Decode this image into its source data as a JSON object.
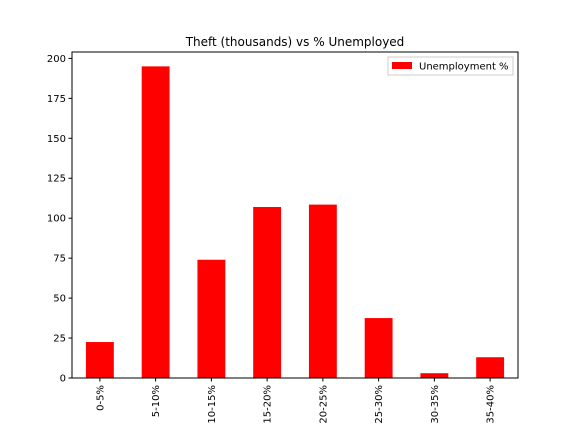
{
  "chart_data": {
    "type": "bar",
    "title": "Theft (thousands) vs % Unemployed",
    "xlabel": "",
    "ylabel": "",
    "categories": [
      "0-5%",
      "5-10%",
      "10-15%",
      "15-20%",
      "20-25%",
      "25-30%",
      "30-35%",
      "35-40%"
    ],
    "series": [
      {
        "name": "Unemployment %",
        "values": [
          22.5,
          195,
          74,
          107,
          108.5,
          37.5,
          3,
          13
        ],
        "color": "#ff0000"
      }
    ],
    "ylim": [
      0,
      204
    ],
    "yticks": [
      0,
      25,
      50,
      75,
      100,
      125,
      150,
      175,
      200
    ],
    "grid": false,
    "legend_position": "top-right",
    "x_tick_rotation": "vertical"
  }
}
